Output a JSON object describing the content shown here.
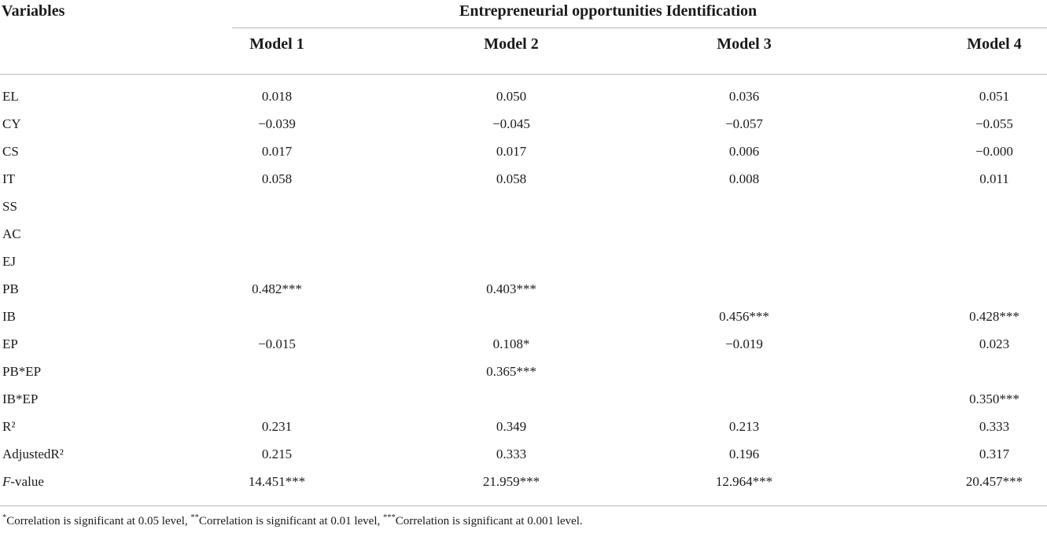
{
  "table": {
    "stub_header": "Variables",
    "spanner_header": "Entrepreneurial opportunities Identification",
    "model_headers": [
      "Model 1",
      "Model 2",
      "Model 3",
      "Model 4"
    ],
    "rows": [
      {
        "label": "EL",
        "values": [
          "0.018",
          "0.050",
          "0.036",
          "0.051"
        ]
      },
      {
        "label": "CY",
        "values": [
          "−0.039",
          "−0.045",
          "−0.057",
          "−0.055"
        ]
      },
      {
        "label": "CS",
        "values": [
          "0.017",
          "0.017",
          "0.006",
          "−0.000"
        ]
      },
      {
        "label": "IT",
        "values": [
          "0.058",
          "0.058",
          "0.008",
          "0.011"
        ]
      },
      {
        "label": "SS",
        "values": [
          "",
          "",
          "",
          ""
        ]
      },
      {
        "label": "AC",
        "values": [
          "",
          "",
          "",
          ""
        ]
      },
      {
        "label": "EJ",
        "values": [
          "",
          "",
          "",
          ""
        ]
      },
      {
        "label": "PB",
        "values": [
          "0.482***",
          "0.403***",
          "",
          ""
        ]
      },
      {
        "label": "IB",
        "values": [
          "",
          "",
          "0.456***",
          "0.428***"
        ]
      },
      {
        "label": "EP",
        "values": [
          "−0.015",
          "0.108*",
          "−0.019",
          "0.023"
        ]
      },
      {
        "label": "PB*EP",
        "values": [
          "",
          "0.365***",
          "",
          ""
        ]
      },
      {
        "label": "IB*EP",
        "values": [
          "",
          "",
          "",
          "0.350***"
        ]
      },
      {
        "label": "R²",
        "values": [
          "0.231",
          "0.349",
          "0.213",
          "0.333"
        ]
      },
      {
        "label": "AdjustedR²",
        "values": [
          "0.215",
          "0.333",
          "0.196",
          "0.317"
        ]
      },
      {
        "label": "F-value",
        "values": [
          "14.451***",
          "21.959***",
          "12.964***",
          "20.457***"
        ]
      }
    ],
    "footnote": "*Correlation is significant at 0.05 level, **Correlation is significant at 0.01 level, ***Correlation is significant at 0.001 level."
  }
}
